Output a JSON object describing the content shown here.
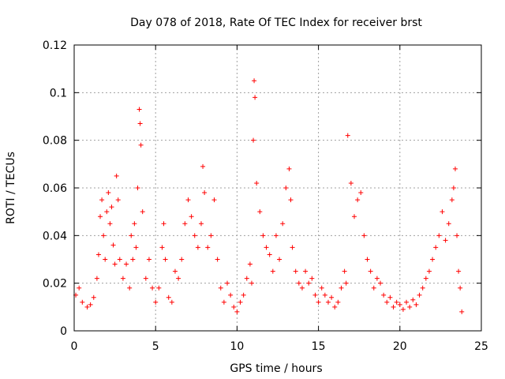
{
  "chart_data": {
    "type": "scatter",
    "title": "Day 078 of 2018, Rate Of TEC Index for receiver brst",
    "xlabel": "GPS time / hours",
    "ylabel": "ROTI / TECUs",
    "xlim": [
      0,
      25
    ],
    "ylim": [
      0,
      0.12
    ],
    "xticks": [
      0,
      5,
      10,
      15,
      20,
      25
    ],
    "yticks": [
      0,
      0.02,
      0.04,
      0.06,
      0.08,
      0.1,
      0.12
    ],
    "grid": true,
    "marker": "+",
    "color": "#ff0000",
    "series": [
      {
        "name": "ROTI",
        "x": [
          0.1,
          0.3,
          0.5,
          0.8,
          1.0,
          1.2,
          1.4,
          1.5,
          1.6,
          1.7,
          1.8,
          1.9,
          2.0,
          2.1,
          2.2,
          2.3,
          2.4,
          2.5,
          2.6,
          2.7,
          2.8,
          3.0,
          3.2,
          3.4,
          3.5,
          3.6,
          3.7,
          3.8,
          3.9,
          4.0,
          4.05,
          4.1,
          4.2,
          4.4,
          4.6,
          4.8,
          5.0,
          5.2,
          5.4,
          5.5,
          5.6,
          5.8,
          6.0,
          6.2,
          6.4,
          6.6,
          6.8,
          7.0,
          7.2,
          7.4,
          7.6,
          7.8,
          7.9,
          8.0,
          8.2,
          8.4,
          8.6,
          8.8,
          9.0,
          9.2,
          9.4,
          9.6,
          9.8,
          10.0,
          10.2,
          10.4,
          10.6,
          10.8,
          10.9,
          11.0,
          11.05,
          11.1,
          11.2,
          11.4,
          11.6,
          11.8,
          12.0,
          12.2,
          12.4,
          12.6,
          12.8,
          13.0,
          13.2,
          13.3,
          13.4,
          13.6,
          13.8,
          14.0,
          14.2,
          14.4,
          14.6,
          14.8,
          15.0,
          15.2,
          15.4,
          15.6,
          15.8,
          16.0,
          16.2,
          16.4,
          16.6,
          16.7,
          16.8,
          17.0,
          17.2,
          17.4,
          17.6,
          17.8,
          18.0,
          18.2,
          18.4,
          18.6,
          18.8,
          19.0,
          19.2,
          19.4,
          19.6,
          19.8,
          20.0,
          20.2,
          20.4,
          20.6,
          20.8,
          21.0,
          21.2,
          21.4,
          21.6,
          21.8,
          22.0,
          22.2,
          22.4,
          22.6,
          22.8,
          23.0,
          23.2,
          23.3,
          23.4,
          23.5,
          23.6,
          23.7,
          23.8
        ],
        "y": [
          0.015,
          0.018,
          0.012,
          0.01,
          0.011,
          0.014,
          0.022,
          0.032,
          0.048,
          0.055,
          0.04,
          0.03,
          0.05,
          0.058,
          0.045,
          0.052,
          0.036,
          0.028,
          0.065,
          0.055,
          0.03,
          0.022,
          0.028,
          0.018,
          0.04,
          0.03,
          0.045,
          0.035,
          0.06,
          0.093,
          0.087,
          0.078,
          0.05,
          0.022,
          0.03,
          0.018,
          0.012,
          0.018,
          0.035,
          0.045,
          0.03,
          0.014,
          0.012,
          0.025,
          0.022,
          0.03,
          0.045,
          0.055,
          0.048,
          0.04,
          0.035,
          0.045,
          0.069,
          0.058,
          0.035,
          0.04,
          0.055,
          0.03,
          0.018,
          0.012,
          0.02,
          0.015,
          0.01,
          0.008,
          0.012,
          0.015,
          0.022,
          0.028,
          0.02,
          0.08,
          0.105,
          0.098,
          0.062,
          0.05,
          0.04,
          0.035,
          0.032,
          0.025,
          0.04,
          0.03,
          0.045,
          0.06,
          0.068,
          0.055,
          0.035,
          0.025,
          0.02,
          0.018,
          0.025,
          0.02,
          0.022,
          0.015,
          0.012,
          0.018,
          0.015,
          0.012,
          0.014,
          0.01,
          0.012,
          0.018,
          0.025,
          0.02,
          0.082,
          0.062,
          0.048,
          0.055,
          0.058,
          0.04,
          0.03,
          0.025,
          0.018,
          0.022,
          0.02,
          0.015,
          0.012,
          0.014,
          0.01,
          0.012,
          0.011,
          0.009,
          0.012,
          0.01,
          0.013,
          0.011,
          0.015,
          0.018,
          0.022,
          0.025,
          0.03,
          0.035,
          0.04,
          0.05,
          0.038,
          0.045,
          0.055,
          0.06,
          0.068,
          0.04,
          0.025,
          0.018,
          0.008
        ]
      }
    ]
  }
}
